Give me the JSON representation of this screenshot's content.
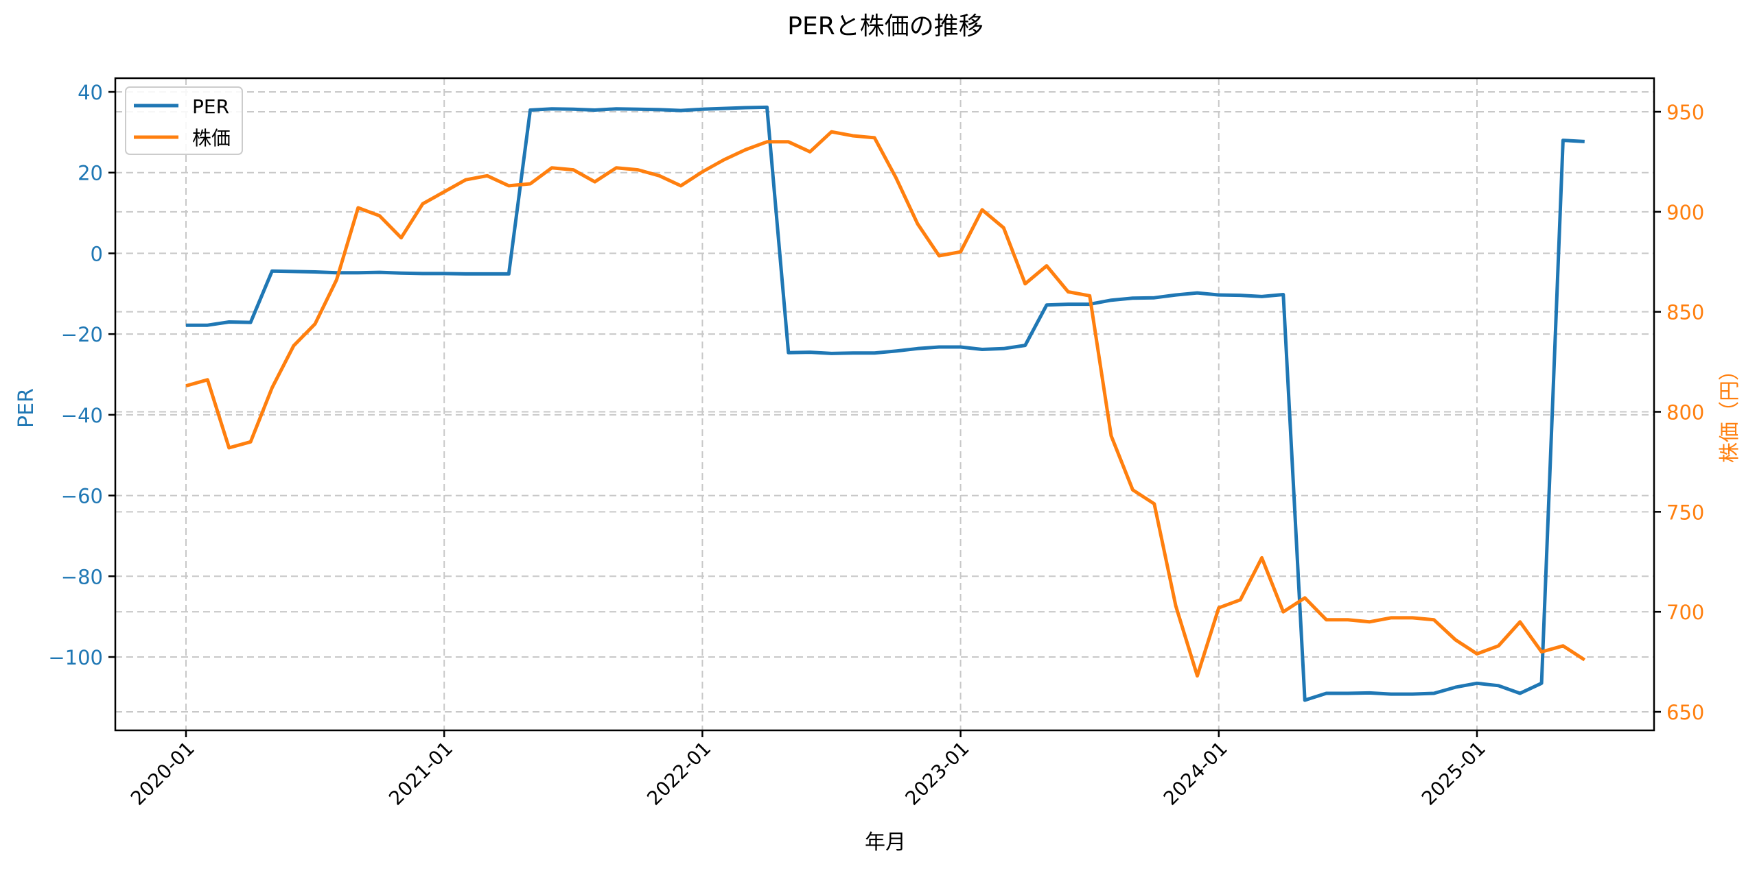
{
  "chart_data": {
    "type": "line",
    "title": "PERと株価の推移",
    "xlabel": "年月",
    "ylabel": "PER",
    "ylabel_right": "株価（円）",
    "x_tick_labels": [
      "2020-01",
      "2021-01",
      "2022-01",
      "2023-01",
      "2024-01",
      "2025-01"
    ],
    "y_ticks_left": [
      40,
      20,
      0,
      -20,
      -40,
      -60,
      -80,
      -100
    ],
    "y_ticks_right": [
      950,
      900,
      850,
      800,
      750,
      700,
      650
    ],
    "ylim_left": [
      -118,
      43
    ],
    "ylim_right": [
      641,
      960
    ],
    "grid": true,
    "legend_position": "upper left",
    "x": [
      "2020-01",
      "2020-02",
      "2020-03",
      "2020-04",
      "2020-05",
      "2020-06",
      "2020-07",
      "2020-08",
      "2020-09",
      "2020-10",
      "2020-11",
      "2020-12",
      "2021-01",
      "2021-02",
      "2021-03",
      "2021-04",
      "2021-05",
      "2021-06",
      "2021-07",
      "2021-08",
      "2021-09",
      "2021-10",
      "2021-11",
      "2021-12",
      "2022-01",
      "2022-02",
      "2022-03",
      "2022-04",
      "2022-05",
      "2022-06",
      "2022-07",
      "2022-08",
      "2022-09",
      "2022-10",
      "2022-11",
      "2022-12",
      "2023-01",
      "2023-02",
      "2023-03",
      "2023-04",
      "2023-05",
      "2023-06",
      "2023-07",
      "2023-08",
      "2023-09",
      "2023-10",
      "2023-11",
      "2023-12",
      "2024-01",
      "2024-02",
      "2024-03",
      "2024-04",
      "2024-05",
      "2024-06",
      "2024-07",
      "2024-08",
      "2024-09",
      "2024-10",
      "2024-11",
      "2024-12",
      "2025-01",
      "2025-02",
      "2025-03",
      "2025-04",
      "2025-05",
      "2025-06"
    ],
    "series": [
      {
        "name": "PER",
        "axis": "left",
        "color": "#1f77b4",
        "values": [
          -17.8,
          -17.8,
          -17.0,
          -17.1,
          -4.4,
          -4.5,
          -4.6,
          -4.8,
          -4.8,
          -4.7,
          -4.9,
          -5.0,
          -5.0,
          -5.1,
          -5.1,
          -5.1,
          35.5,
          35.8,
          35.7,
          35.5,
          35.8,
          35.7,
          35.6,
          35.4,
          35.7,
          35.9,
          36.1,
          36.2,
          -24.6,
          -24.5,
          -24.8,
          -24.7,
          -24.7,
          -24.2,
          -23.6,
          -23.2,
          -23.2,
          -23.8,
          -23.6,
          -22.8,
          -12.8,
          -12.6,
          -12.6,
          -11.6,
          -11.1,
          -11.0,
          -10.3,
          -9.8,
          -10.3,
          -10.4,
          -10.7,
          -10.2,
          -110.7,
          -109.0,
          -109.0,
          -108.9,
          -109.2,
          -109.2,
          -109.0,
          -107.5,
          -106.5,
          -107.1,
          -109.0,
          -106.5,
          28.0,
          27.7
        ]
      },
      {
        "name": "株価",
        "axis": "right",
        "color": "#ff7f0e",
        "values": [
          813,
          816,
          782,
          785,
          812,
          833,
          844,
          866,
          902,
          898,
          887,
          904,
          910,
          916,
          918,
          913,
          914,
          922,
          921,
          915,
          922,
          921,
          918,
          913,
          920,
          926,
          931,
          935,
          935,
          930,
          940,
          938,
          937,
          917,
          894,
          878,
          880,
          901,
          892,
          864,
          873,
          860,
          858,
          788,
          761,
          754,
          703,
          668,
          702,
          706,
          727,
          700,
          707,
          696,
          696,
          695,
          697,
          697,
          696,
          686,
          679,
          683,
          695,
          680,
          683,
          676
        ]
      }
    ]
  },
  "legend": {
    "items": [
      {
        "label": "PER",
        "color": "#1f77b4"
      },
      {
        "label": "株価",
        "color": "#ff7f0e"
      }
    ]
  },
  "colors": {
    "per": "#1f77b4",
    "price": "#ff7f0e",
    "grid": "#c8c8c8",
    "axis": "#000000"
  }
}
